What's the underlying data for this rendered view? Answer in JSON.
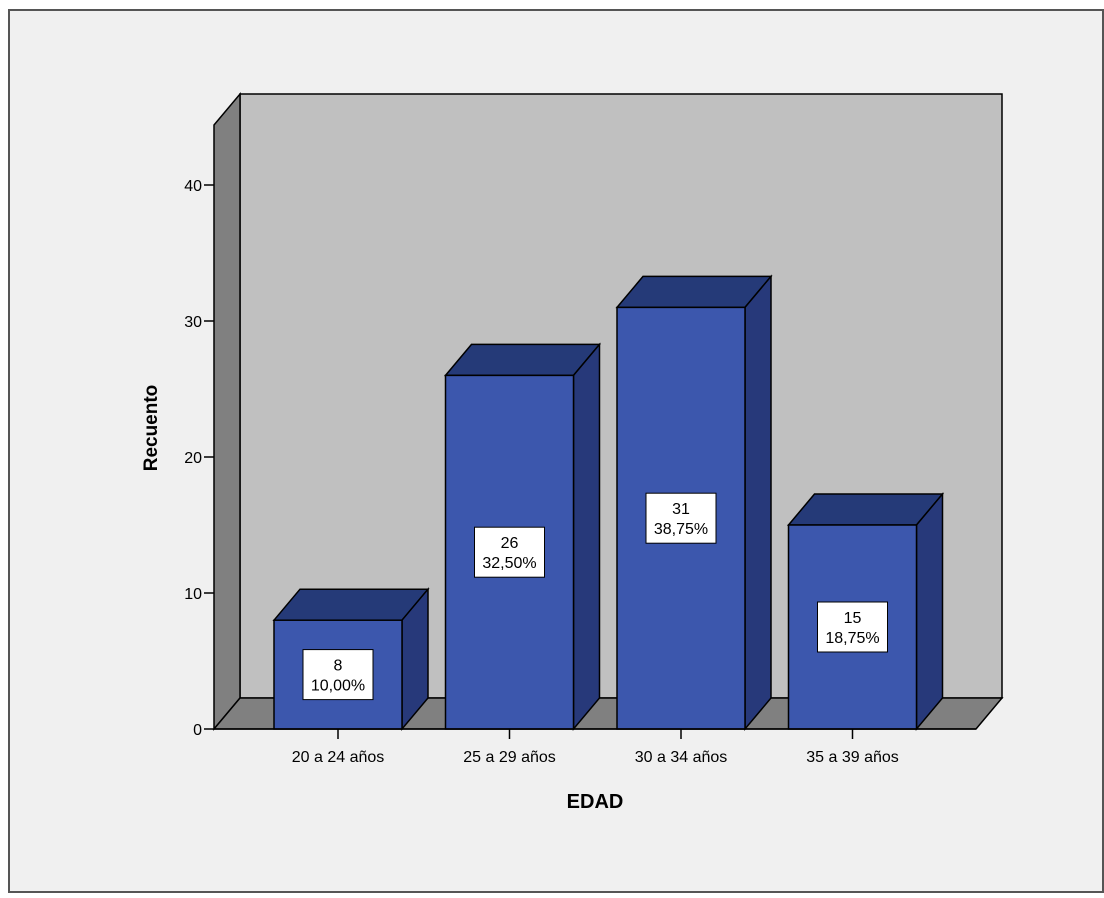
{
  "chart_data": {
    "type": "bar",
    "title": "",
    "xlabel": "EDAD",
    "ylabel": "Recuento",
    "categories": [
      "20 a 24 años",
      "25 a 29 años",
      "30 a 34 años",
      "35 a 39 años"
    ],
    "values": [
      8,
      26,
      31,
      15
    ],
    "data_labels": [
      {
        "count": "8",
        "percent": "10,00%"
      },
      {
        "count": "26",
        "percent": "32,50%"
      },
      {
        "count": "31",
        "percent": "38,75%"
      },
      {
        "count": "15",
        "percent": "18,75%"
      }
    ],
    "yticks": [
      0,
      10,
      20,
      30,
      40
    ],
    "ylim": [
      0,
      45
    ],
    "grid": false,
    "legend": "none",
    "three_d": true
  },
  "colors": {
    "background": "#f0f0f0",
    "frame": "#555555",
    "back_wall": "#c0c0c0",
    "side_wall": "#808080",
    "floor": "#808080",
    "bar_front": "#3c57ad",
    "bar_top": "#253a78",
    "bar_side": "#27397a",
    "label_box": "#ffffff",
    "text": "#000000"
  }
}
